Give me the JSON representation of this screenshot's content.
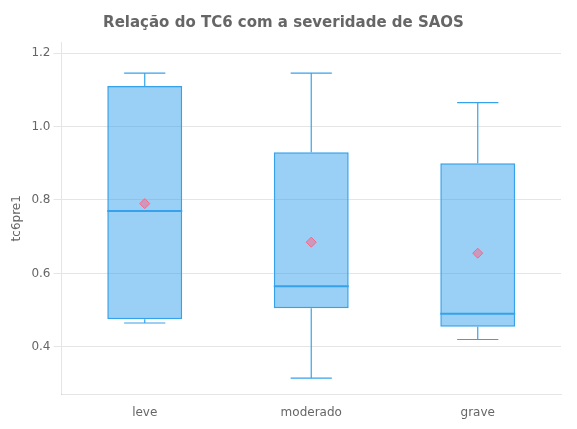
{
  "chart_data": {
    "type": "box",
    "title": "Relação do TC6 com a severidade de SAOS",
    "ylabel": "tc6pre1",
    "categories": [
      "leve",
      "moderado",
      "grave"
    ],
    "q1": [
      0.475,
      0.505,
      0.455
    ],
    "median": [
      0.77,
      0.565,
      0.49
    ],
    "q3": [
      1.11,
      0.93,
      0.9
    ],
    "whisker_low": [
      0.465,
      0.315,
      0.42
    ],
    "whisker_high": [
      1.145,
      1.145,
      1.065
    ],
    "mean": [
      0.79,
      0.685,
      0.655
    ],
    "ylim": [
      0.27,
      1.23
    ],
    "yticks": [
      0.4,
      0.6,
      0.8,
      {
        "value": 1.0,
        "label": "1.0"
      },
      1.2
    ],
    "grid": true
  }
}
